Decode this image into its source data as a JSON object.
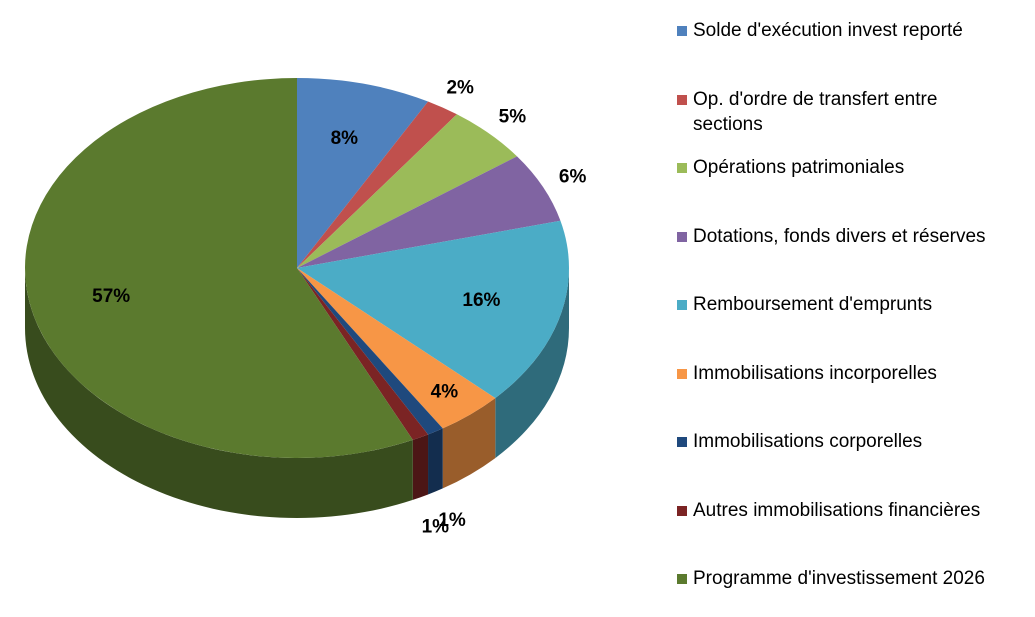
{
  "chart_data": {
    "type": "pie",
    "categories": [
      "Solde d'exécution invest reporté",
      "Op. d'ordre de transfert entre sections",
      "Opérations patrimoniales",
      "Dotations, fonds divers et réserves",
      "Remboursement d'emprunts",
      "Immobilisations incorporelles",
      "Immobilisations corporelles",
      "Autres immobilisations financières",
      "Programme d'investissement 2026"
    ],
    "values": [
      8,
      2,
      5,
      6,
      16,
      4,
      1,
      1,
      57
    ],
    "value_labels": [
      "8%",
      "2%",
      "5%",
      "6%",
      "16%",
      "4%",
      "1%",
      "1%",
      "57%"
    ],
    "colors": [
      "#4f81bd",
      "#c0504d",
      "#9bbb59",
      "#8064a2",
      "#4bacc6",
      "#f79646",
      "#1f497d",
      "#7b2424",
      "#5b7a2e"
    ],
    "legend": "right"
  }
}
